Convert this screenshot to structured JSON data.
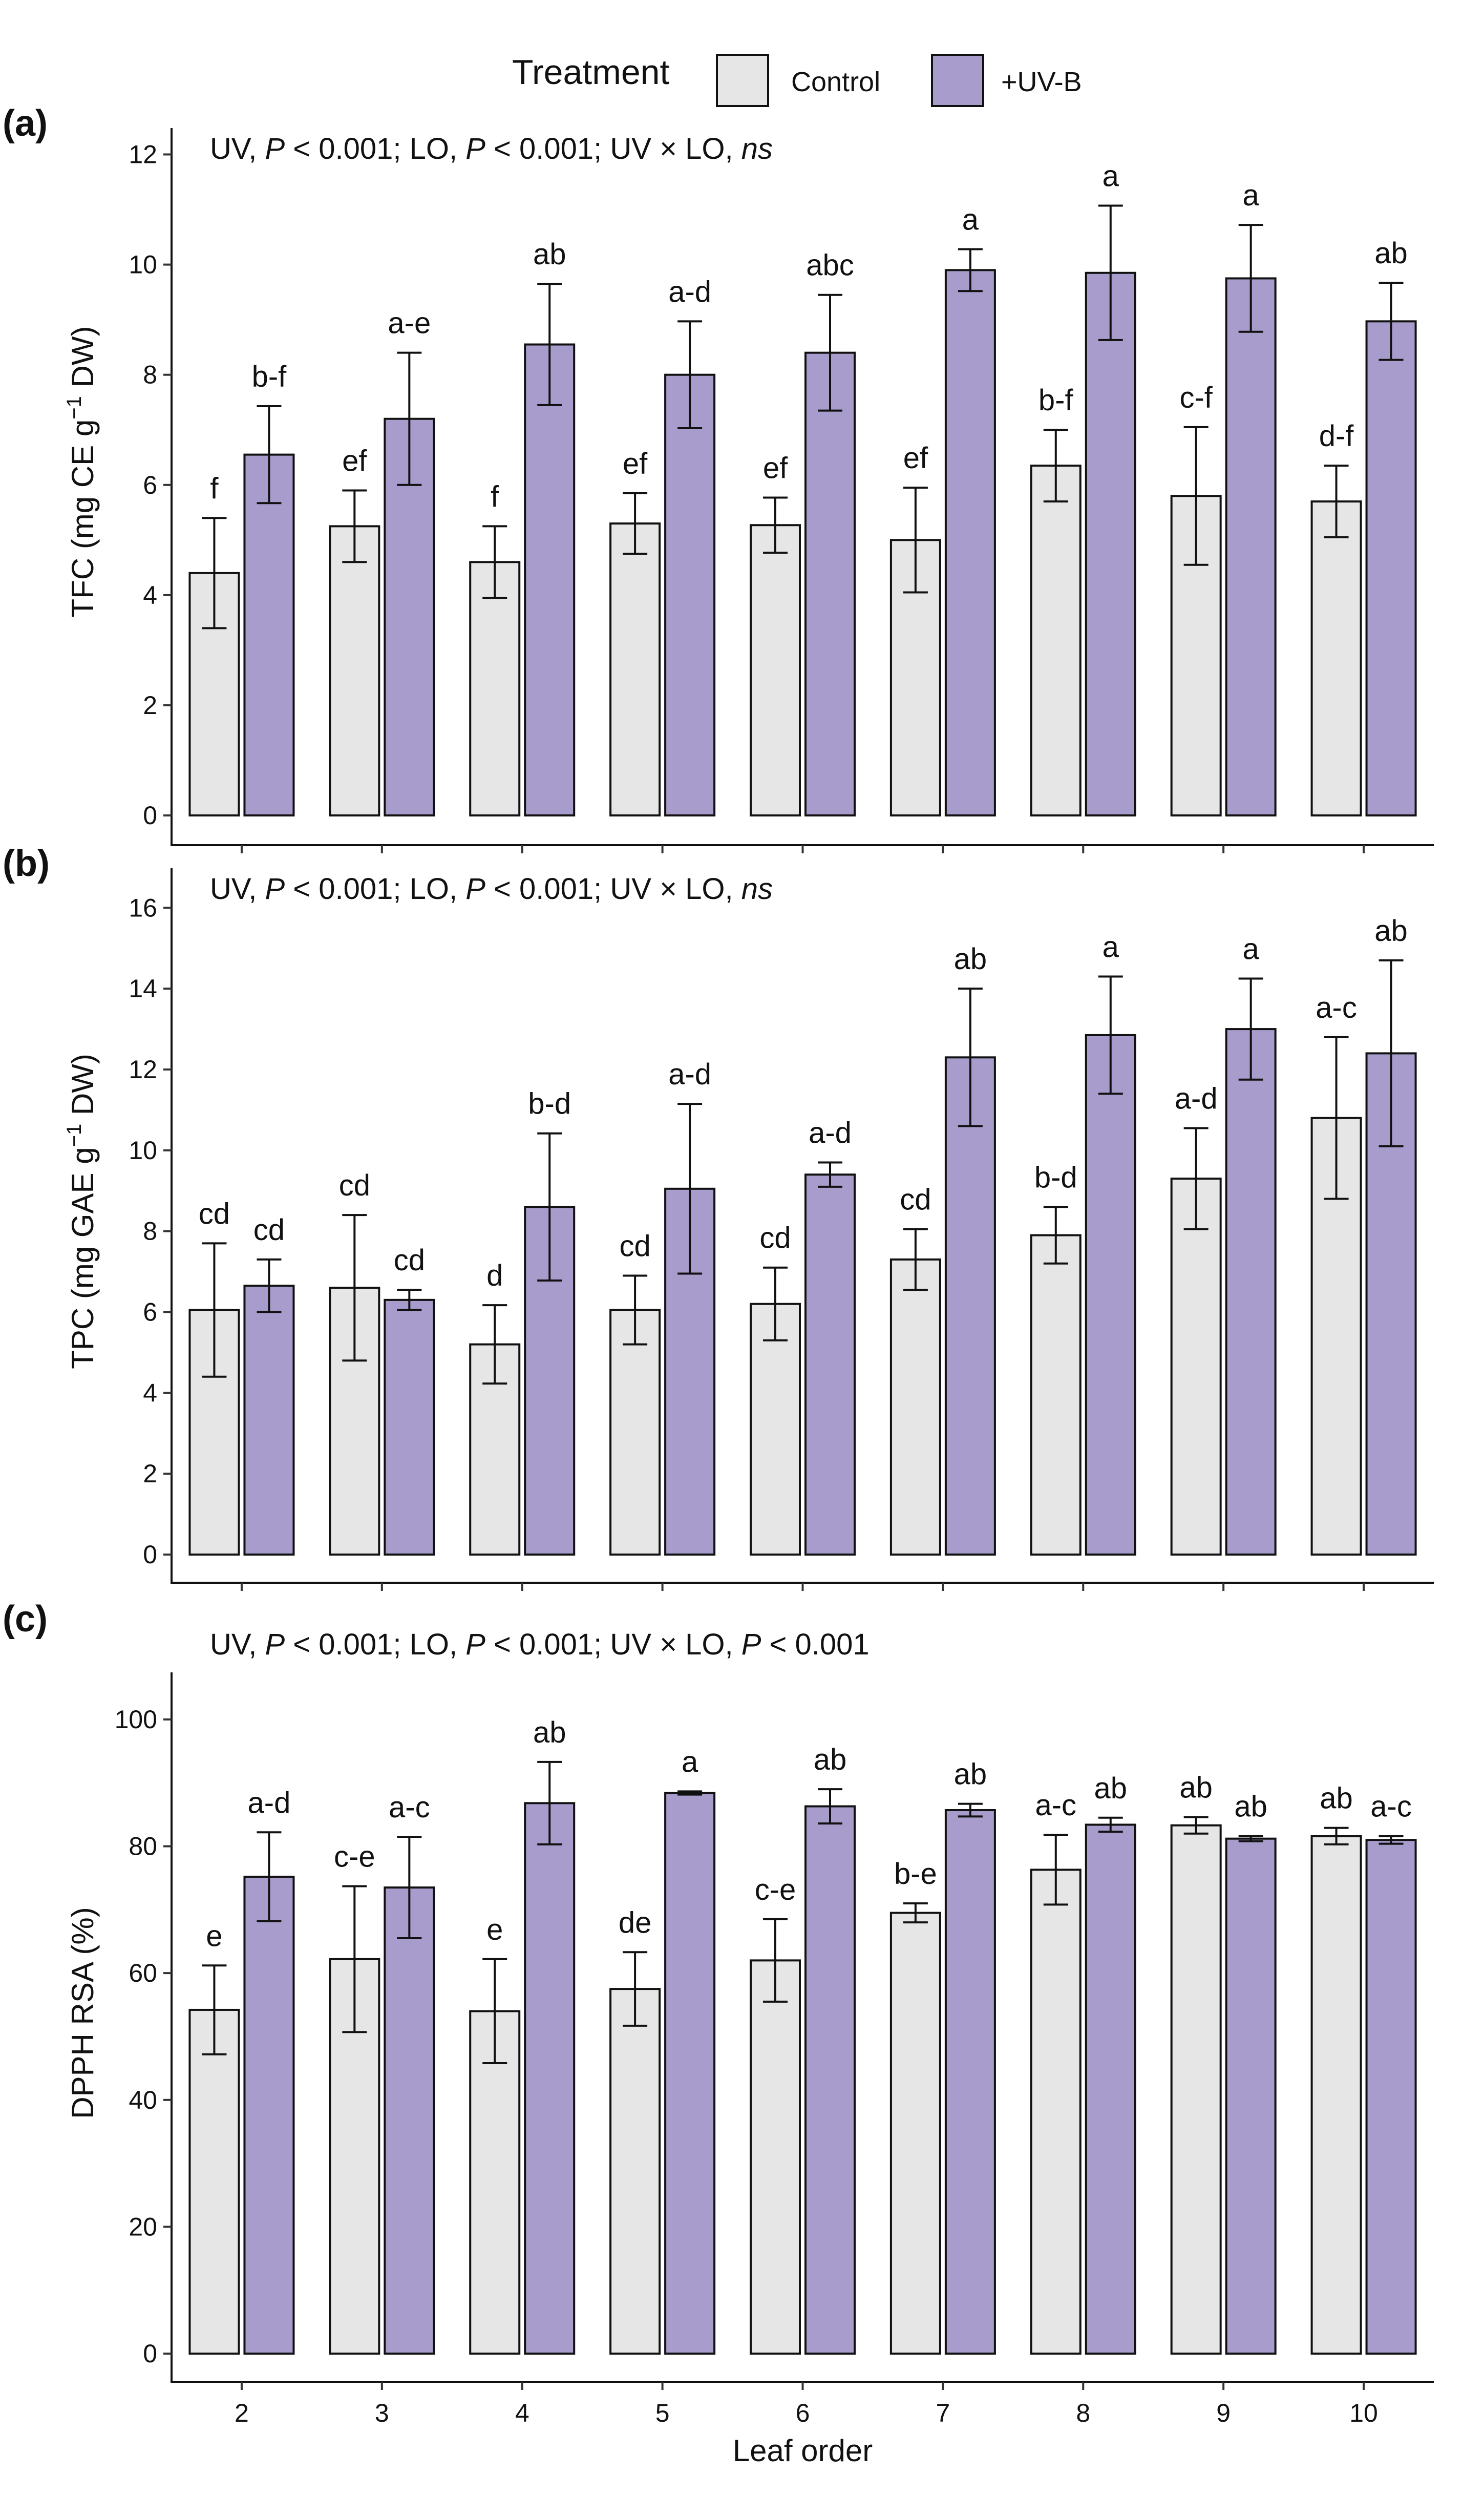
{
  "legend": {
    "title": "Treatment",
    "entries": [
      {
        "label": "Control",
        "color": "#e6e6e6"
      },
      {
        "label": "+UV-B",
        "color": "#a79ccc"
      }
    ]
  },
  "colors": {
    "control": "#e6e6e6",
    "uvb": "#a79ccc",
    "stroke": "#111111"
  },
  "x_axis": {
    "label": "Leaf order"
  },
  "chart_data": [
    {
      "type": "bar",
      "panel": "(a)",
      "ylabel_prefix": "TFC (mg CE g",
      "ylabel_sup": "−1",
      "ylabel_suffix": " DW)",
      "stats": [
        "UV, ",
        "P",
        " < 0.001; LO, ",
        "P",
        " < 0.001; UV × LO, ",
        "ns"
      ],
      "ylim": [
        0,
        12.2
      ],
      "yticks": [
        0,
        2,
        4,
        6,
        8,
        10,
        12
      ],
      "categories": [
        "2",
        "3",
        "4",
        "5",
        "6",
        "7",
        "8",
        "9",
        "10"
      ],
      "series": [
        {
          "name": "Control",
          "values": [
            4.4,
            5.25,
            4.6,
            5.3,
            5.27,
            5.0,
            6.35,
            5.8,
            5.7
          ],
          "errors": [
            1.0,
            0.65,
            0.65,
            0.55,
            0.5,
            0.95,
            0.65,
            1.25,
            0.65
          ],
          "labels": [
            "f",
            "ef",
            "f",
            "ef",
            "ef",
            "ef",
            "b-f",
            "c-f",
            "d-f"
          ]
        },
        {
          "name": "+UV-B",
          "values": [
            6.55,
            7.2,
            8.55,
            8.0,
            8.4,
            9.9,
            9.85,
            9.75,
            8.97
          ],
          "errors": [
            0.88,
            1.2,
            1.1,
            0.97,
            1.05,
            0.38,
            1.22,
            0.97,
            0.7
          ],
          "labels": [
            "b-f",
            "a-e",
            "ab",
            "a-d",
            "abc",
            "a",
            "a",
            "a",
            "ab"
          ]
        }
      ]
    },
    {
      "type": "bar",
      "panel": "(b)",
      "ylabel_prefix": "TPC (mg GAE g",
      "ylabel_sup": "−1",
      "ylabel_suffix": " DW)",
      "stats": [
        "UV, ",
        "P",
        " < 0.001; LO, ",
        "P",
        " < 0.001; UV × LO, ",
        "ns"
      ],
      "ylim": [
        0,
        16.6
      ],
      "yticks": [
        0,
        2,
        4,
        6,
        8,
        10,
        12,
        14,
        16
      ],
      "categories": [
        "2",
        "3",
        "4",
        "5",
        "6",
        "7",
        "8",
        "9",
        "10"
      ],
      "series": [
        {
          "name": "Control",
          "values": [
            6.05,
            6.6,
            5.2,
            6.05,
            6.2,
            7.3,
            7.9,
            9.3,
            10.8
          ],
          "errors": [
            1.65,
            1.8,
            0.97,
            0.85,
            0.9,
            0.75,
            0.7,
            1.25,
            2.0
          ],
          "labels": [
            "cd",
            "cd",
            "d",
            "cd",
            "cd",
            "cd",
            "b-d",
            "a-d",
            "a-c"
          ]
        },
        {
          "name": "+UV-B",
          "values": [
            6.65,
            6.3,
            8.6,
            9.05,
            9.4,
            12.3,
            12.85,
            13.0,
            12.4
          ],
          "errors": [
            0.65,
            0.25,
            1.82,
            2.1,
            0.3,
            1.7,
            1.45,
            1.25,
            2.3
          ],
          "labels": [
            "cd",
            "cd",
            "b-d",
            "a-d",
            "a-d",
            "ab",
            "a",
            "a",
            "ab"
          ]
        }
      ]
    },
    {
      "type": "bar",
      "panel": "(c)",
      "ylabel_prefix": "DPPH RSA (%)",
      "ylabel_sup": "",
      "ylabel_suffix": "",
      "stats": [
        "UV, ",
        "P",
        " < 0.001; LO, ",
        "P",
        " < 0.001; UV × LO, ",
        "P",
        " < 0.001"
      ],
      "ylim": [
        0,
        105
      ],
      "yticks": [
        0,
        20,
        40,
        60,
        80,
        100
      ],
      "categories": [
        "2",
        "3",
        "4",
        "5",
        "6",
        "7",
        "8",
        "9",
        "10"
      ],
      "xlabel": "Leaf order",
      "series": [
        {
          "name": "Control",
          "values": [
            54.2,
            62.2,
            54.0,
            57.5,
            62.0,
            69.5,
            76.3,
            83.3,
            81.6
          ],
          "errors": [
            7.0,
            11.5,
            8.2,
            5.8,
            6.5,
            1.5,
            5.5,
            1.3,
            1.3
          ],
          "labels": [
            "e",
            "c-e",
            "e",
            "de",
            "c-e",
            "b-e",
            "a-c",
            "ab",
            "ab"
          ]
        },
        {
          "name": "+UV-B",
          "values": [
            75.2,
            73.5,
            86.8,
            88.4,
            86.3,
            85.7,
            83.4,
            81.2,
            81.0
          ],
          "errors": [
            7.0,
            8.0,
            6.5,
            0.25,
            2.7,
            1.0,
            1.1,
            0.4,
            0.6
          ],
          "labels": [
            "a-d",
            "a-c",
            "ab",
            "a",
            "ab",
            "ab",
            "ab",
            "ab",
            "a-c"
          ]
        }
      ]
    }
  ]
}
